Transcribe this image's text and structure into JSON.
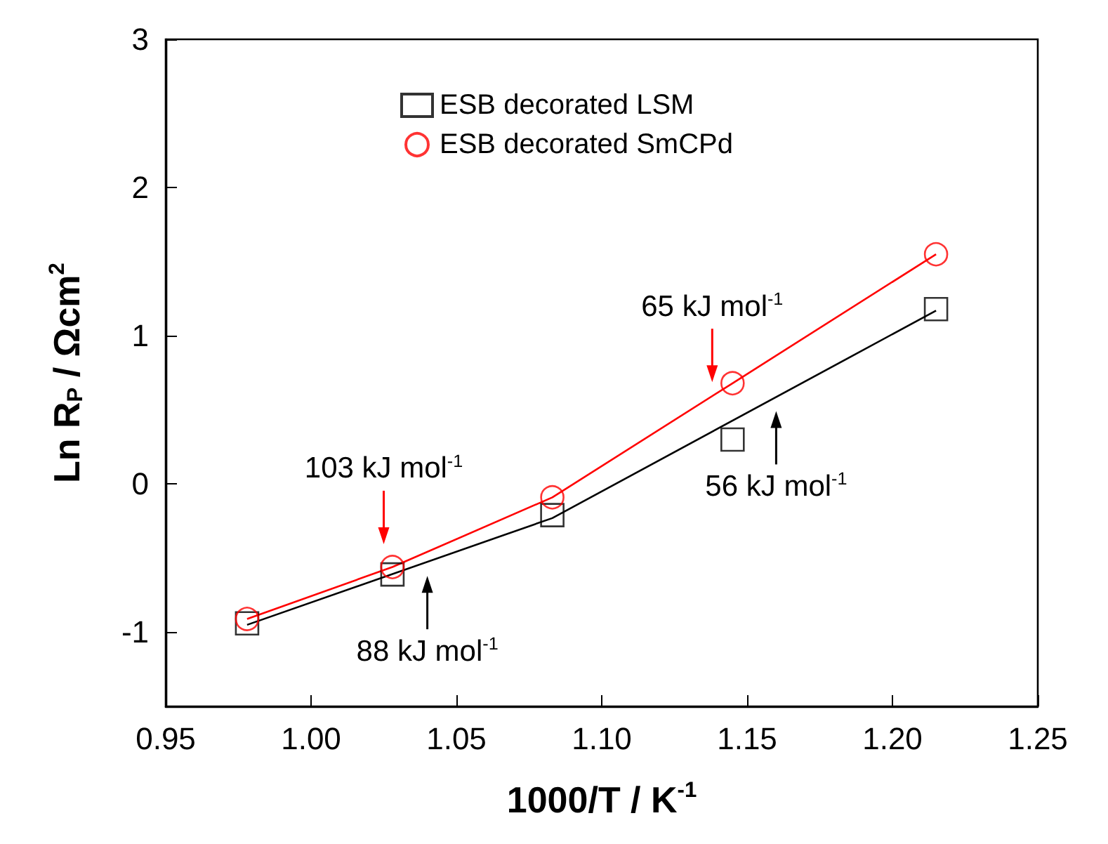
{
  "chart_data": {
    "type": "scatter",
    "xlabel": "1000/T / K$^{-1}$",
    "ylabel": "Ln R$_{P}$ / Ωcm$^{2}$",
    "xlim": [
      0.95,
      1.25
    ],
    "xticks": [
      0.95,
      {
        "value": 1.0,
        "label": "1.00"
      },
      1.05,
      {
        "value": 1.1,
        "label": "1.10"
      },
      1.15,
      {
        "value": 1.2,
        "label": "1.20"
      },
      1.25
    ],
    "ylim": [
      -1.5,
      3
    ],
    "yticks": [
      -1,
      0,
      1,
      2,
      3
    ],
    "grid": false,
    "legend": "top",
    "series": [
      {
        "name": "ESB decorated LSM",
        "color": "#000000",
        "marker": "square",
        "x": [
          0.978,
          1.028,
          1.083,
          1.145,
          1.215
        ],
        "values": [
          -0.94,
          -0.61,
          -0.21,
          0.3,
          1.18
        ]
      },
      {
        "name": "ESB decorated SmCPd",
        "color": "#ff0000",
        "marker": "circle",
        "x": [
          0.978,
          1.028,
          1.083,
          1.145,
          1.215
        ],
        "values": [
          -0.91,
          -0.56,
          -0.09,
          0.68,
          1.55
        ]
      },
      {
        "type": "line",
        "color": "#000000",
        "marker": "none",
        "x": [
          0.978,
          1.083,
          1.215
        ],
        "values": [
          -0.95,
          -0.23,
          1.17
        ]
      },
      {
        "type": "line",
        "color": "#ff0000",
        "marker": "none",
        "x": [
          0.978,
          1.028,
          1.083,
          1.145,
          1.215
        ],
        "values": [
          -0.91,
          -0.56,
          -0.09,
          0.68,
          1.55
        ]
      }
    ],
    "annotations": [
      {
        "text": "103 kJ mol$^{-1}$",
        "x": 1.025,
        "y": -0.5
      },
      {
        "text": "88 kJ mol$^{-1}$",
        "x": 1.04,
        "y": -0.525
      },
      {
        "text": "65 kJ mol$^{-1}$",
        "x": 1.138,
        "y": 0.593
      },
      {
        "text": "56 kJ mol$^{-1}$",
        "x": 1.16,
        "y": 0.587
      }
    ]
  }
}
